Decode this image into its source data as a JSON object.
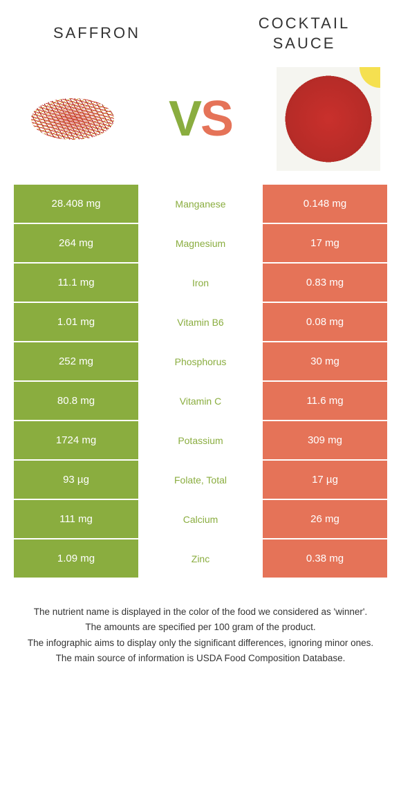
{
  "colors": {
    "left": "#8aad3f",
    "right": "#e57358",
    "mid_left_text": "#8aad3f",
    "mid_right_text": "#e57358"
  },
  "left_food": {
    "title": "Saffron"
  },
  "right_food": {
    "title": "Cocktail sauce"
  },
  "vs_label": "VS",
  "rows": [
    {
      "left": "28.408 mg",
      "label": "Manganese",
      "right": "0.148 mg",
      "winner": "left"
    },
    {
      "left": "264 mg",
      "label": "Magnesium",
      "right": "17 mg",
      "winner": "left"
    },
    {
      "left": "11.1 mg",
      "label": "Iron",
      "right": "0.83 mg",
      "winner": "left"
    },
    {
      "left": "1.01 mg",
      "label": "Vitamin B6",
      "right": "0.08 mg",
      "winner": "left"
    },
    {
      "left": "252 mg",
      "label": "Phosphorus",
      "right": "30 mg",
      "winner": "left"
    },
    {
      "left": "80.8 mg",
      "label": "Vitamin C",
      "right": "11.6 mg",
      "winner": "left"
    },
    {
      "left": "1724 mg",
      "label": "Potassium",
      "right": "309 mg",
      "winner": "left"
    },
    {
      "left": "93 µg",
      "label": "Folate, total",
      "right": "17 µg",
      "winner": "left"
    },
    {
      "left": "111 mg",
      "label": "Calcium",
      "right": "26 mg",
      "winner": "left"
    },
    {
      "left": "1.09 mg",
      "label": "Zinc",
      "right": "0.38 mg",
      "winner": "left"
    }
  ],
  "footnotes": [
    "The nutrient name is displayed in the color of the food we considered as 'winner'.",
    "The amounts are specified per 100 gram of the product.",
    "The infographic aims to display only the significant differences, ignoring minor ones.",
    "The main source of information is USDA Food Composition Database."
  ]
}
